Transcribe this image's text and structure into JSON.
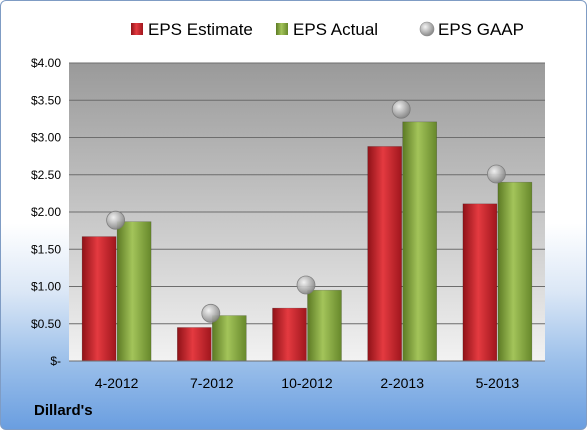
{
  "company": "Dillard's",
  "chart_data": {
    "type": "bar",
    "categories": [
      "4-2012",
      "7-2012",
      "10-2012",
      "2-2013",
      "5-2013"
    ],
    "series": [
      {
        "name": "EPS Estimate",
        "kind": "bar",
        "color": "#c0262e",
        "values": [
          1.67,
          0.45,
          0.71,
          2.88,
          2.11
        ]
      },
      {
        "name": "EPS Actual",
        "kind": "bar",
        "color": "#7fa03c",
        "values": [
          1.87,
          0.61,
          0.95,
          3.21,
          2.4
        ]
      },
      {
        "name": "EPS GAAP",
        "kind": "marker",
        "color": "#b7b7b7",
        "values": [
          1.89,
          0.64,
          1.02,
          3.38,
          2.51
        ]
      }
    ],
    "ylim": [
      0,
      4
    ],
    "y_ticks": [
      0,
      0.5,
      1,
      1.5,
      2,
      2.5,
      3,
      3.5,
      4
    ],
    "y_tick_labels": [
      "$-",
      "$0.50",
      "$1.00",
      "$1.50",
      "$2.00",
      "$2.50",
      "$3.00",
      "$3.50",
      "$4.00"
    ],
    "grid": true,
    "legend_position": "top",
    "xlabel": "",
    "ylabel": ""
  }
}
